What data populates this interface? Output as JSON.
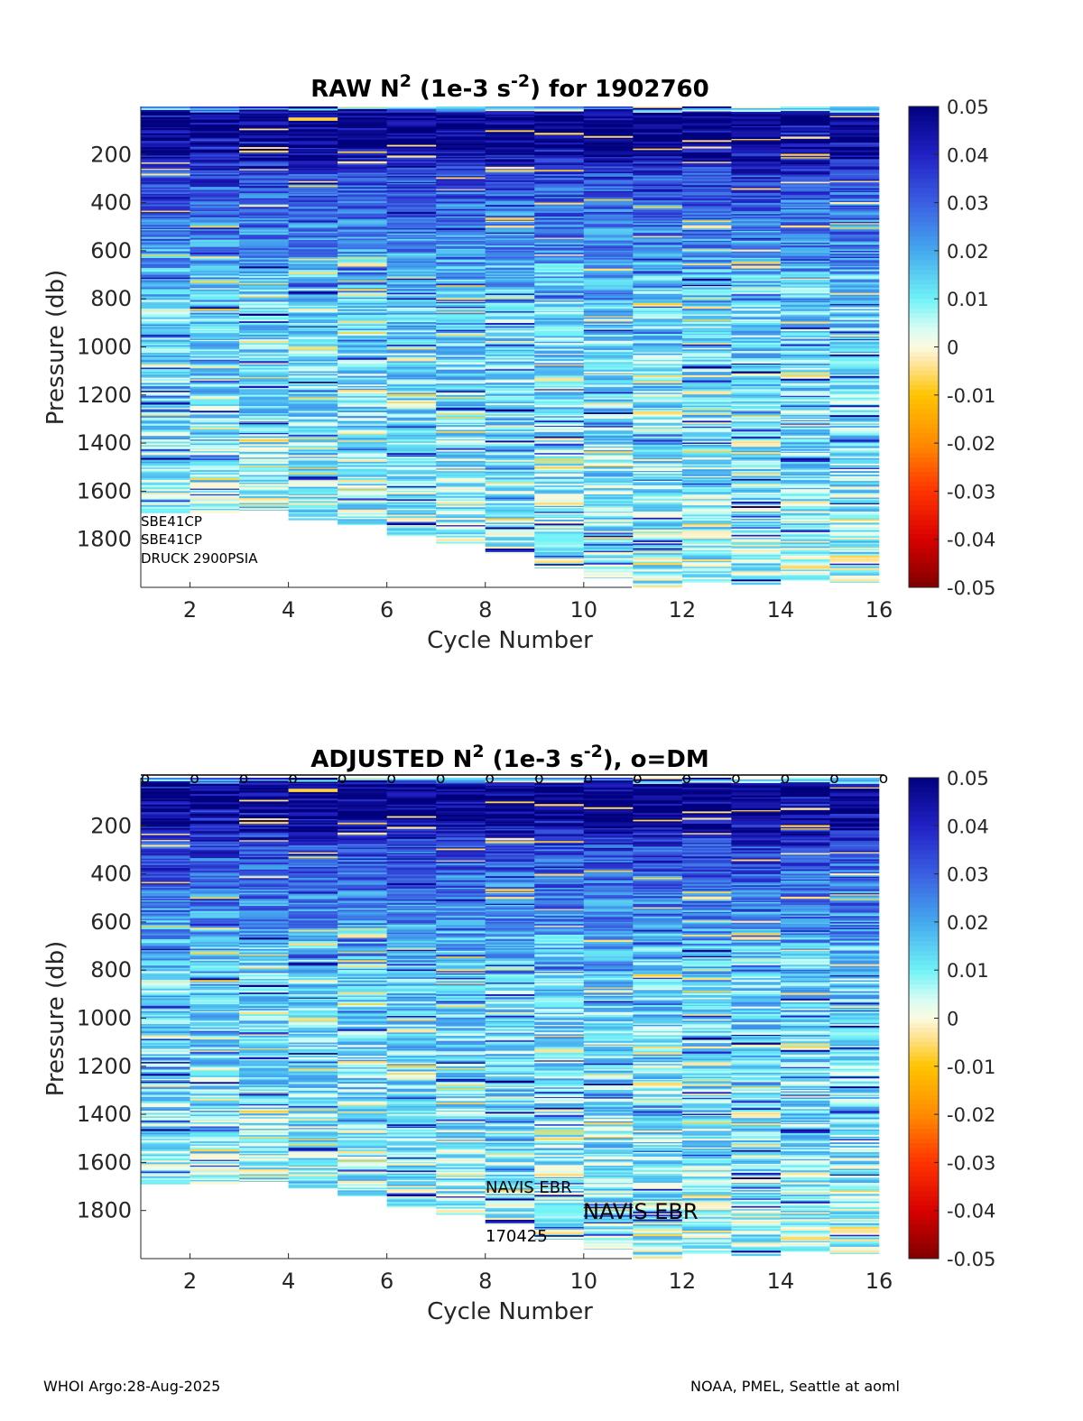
{
  "footer": {
    "left": "WHOI Argo:28-Aug-2025",
    "right": "NOAA, PMEL, Seattle at aoml"
  },
  "colormap": {
    "stops": [
      [
        -0.05,
        "#7f0000"
      ],
      [
        -0.04,
        "#d90000"
      ],
      [
        -0.03,
        "#ff3300"
      ],
      [
        -0.02,
        "#ff8c00"
      ],
      [
        -0.01,
        "#ffc400"
      ],
      [
        -0.003,
        "#ffe7a8"
      ],
      [
        0,
        "#fbfbe0"
      ],
      [
        0.004,
        "#d6fcf4"
      ],
      [
        0.01,
        "#6ff2f6"
      ],
      [
        0.02,
        "#44a8ee"
      ],
      [
        0.03,
        "#3a5ee2"
      ],
      [
        0.04,
        "#2121c4"
      ],
      [
        0.05,
        "#00007e"
      ]
    ]
  },
  "chart_data": [
    {
      "type": "heatmap",
      "id": "raw",
      "title": "RAW N",
      "title_sup": "2",
      "title_mid": " (1e-3 s",
      "title_sup2": "-2",
      "title_end": ") for 1902760",
      "xlabel": "Cycle Number",
      "ylabel": "Pressure (db)",
      "xlim": [
        1,
        16
      ],
      "ylim": [
        0,
        2000
      ],
      "xticks": [
        "2",
        "4",
        "6",
        "8",
        "10",
        "12",
        "14",
        "16"
      ],
      "yticks": [
        "200",
        "400",
        "600",
        "800",
        "1000",
        "1200",
        "1400",
        "1600",
        "1800"
      ],
      "cycles": [
        1,
        2,
        3,
        4,
        5,
        6,
        7,
        8,
        9,
        10,
        11,
        12,
        13,
        14,
        15
      ],
      "max_pressure": [
        1690,
        1690,
        1680,
        1720,
        1740,
        1790,
        1820,
        1860,
        1920,
        1960,
        2000,
        1980,
        1990,
        1970,
        1980
      ],
      "clim": [
        -0.05,
        0.05
      ],
      "colorbar_ticks": [
        "0.05",
        "0.04",
        "0.03",
        "0.02",
        "0.01",
        "0",
        "-0.01",
        "-0.02",
        "-0.03",
        "-0.04",
        "-0.05"
      ],
      "annotations": [
        "SBE41CP",
        "SBE41CP",
        "DRUCK 2900PSIA"
      ]
    },
    {
      "type": "heatmap",
      "id": "adjusted",
      "title": "ADJUSTED N",
      "title_sup": "2",
      "title_mid": " (1e-3 s",
      "title_sup2": "-2",
      "title_end": "), o=DM",
      "xlabel": "Cycle Number",
      "ylabel": "Pressure (db)",
      "xlim": [
        1,
        16
      ],
      "ylim": [
        0,
        2000
      ],
      "xticks": [
        "2",
        "4",
        "6",
        "8",
        "10",
        "12",
        "14",
        "16"
      ],
      "yticks": [
        "200",
        "400",
        "600",
        "800",
        "1000",
        "1200",
        "1400",
        "1600",
        "1800"
      ],
      "cycles": [
        1,
        2,
        3,
        4,
        5,
        6,
        7,
        8,
        9,
        10,
        11,
        12,
        13,
        14,
        15
      ],
      "max_pressure": [
        1690,
        1690,
        1680,
        1710,
        1740,
        1790,
        1820,
        1860,
        1920,
        1960,
        2000,
        1980,
        1990,
        1970,
        1980
      ],
      "clim": [
        -0.05,
        0.05
      ],
      "colorbar_ticks": [
        "0.05",
        "0.04",
        "0.03",
        "0.02",
        "0.01",
        "0",
        "-0.01",
        "-0.02",
        "-0.03",
        "-0.04",
        "-0.05"
      ],
      "dm_marker": "o",
      "dm_cycles": [
        1,
        2,
        3,
        4,
        5,
        6,
        7,
        8,
        9,
        10,
        11,
        12,
        13,
        14,
        15,
        16
      ],
      "annotations": [
        "NAVIS EBR",
        "NAVIS EBR",
        "170425"
      ]
    }
  ]
}
